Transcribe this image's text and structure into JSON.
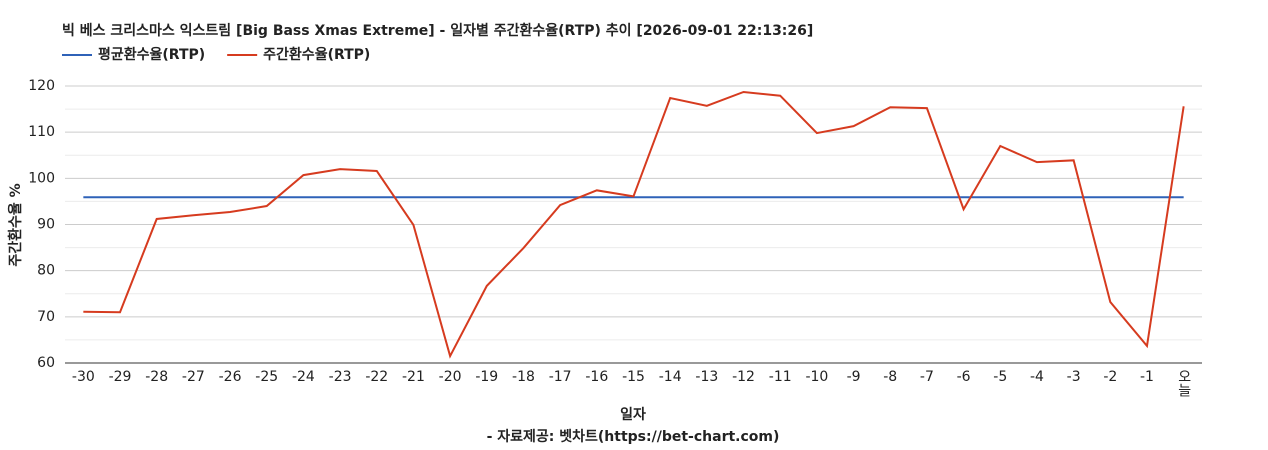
{
  "chart_data": {
    "type": "line",
    "title": "빅 베스 크리스마스 익스트림 [Big Bass Xmas Extreme] - 일자별 주간환수율(RTP) 추이 [2026-09-01 22:13:26]",
    "x_label": "일자",
    "y_label": "주간환수율 %",
    "source": "- 자료제공: 벳차트(https://bet-chart.com)",
    "categories": [
      "-30",
      "-29",
      "-28",
      "-27",
      "-26",
      "-25",
      "-24",
      "-23",
      "-22",
      "-21",
      "-20",
      "-19",
      "-18",
      "-17",
      "-16",
      "-15",
      "-14",
      "-13",
      "-12",
      "-11",
      "-10",
      "-9",
      "-8",
      "-7",
      "-6",
      "-5",
      "-4",
      "-3",
      "-2",
      "-1",
      "오늘"
    ],
    "series": [
      {
        "name": "평균환수율(RTP)",
        "color": "#2f62b8",
        "values": [
          95.9,
          95.9,
          95.9,
          95.9,
          95.9,
          95.9,
          95.9,
          95.9,
          95.9,
          95.9,
          95.9,
          95.9,
          95.9,
          95.9,
          95.9,
          95.9,
          95.9,
          95.9,
          95.9,
          95.9,
          95.9,
          95.9,
          95.9,
          95.9,
          95.9,
          95.9,
          95.9,
          95.9,
          95.9,
          95.9,
          95.9
        ]
      },
      {
        "name": "주간환수율(RTP)",
        "color": "#d63b1f",
        "values": [
          71.1,
          71.0,
          91.2,
          92.0,
          92.7,
          94.0,
          100.7,
          102.0,
          101.6,
          89.9,
          61.5,
          76.7,
          84.9,
          94.2,
          97.4,
          96.1,
          117.4,
          115.7,
          118.7,
          117.9,
          109.8,
          111.3,
          115.4,
          115.2,
          93.3,
          107.0,
          103.5,
          103.9,
          73.2,
          63.7,
          115.6
        ]
      }
    ],
    "ylim": [
      60,
      120
    ],
    "yticks": [
      60,
      70,
      80,
      90,
      100,
      110,
      120
    ],
    "minor_yticks": [
      65,
      75,
      85,
      95,
      105,
      115
    ],
    "grid": true,
    "legend": "top-left"
  }
}
